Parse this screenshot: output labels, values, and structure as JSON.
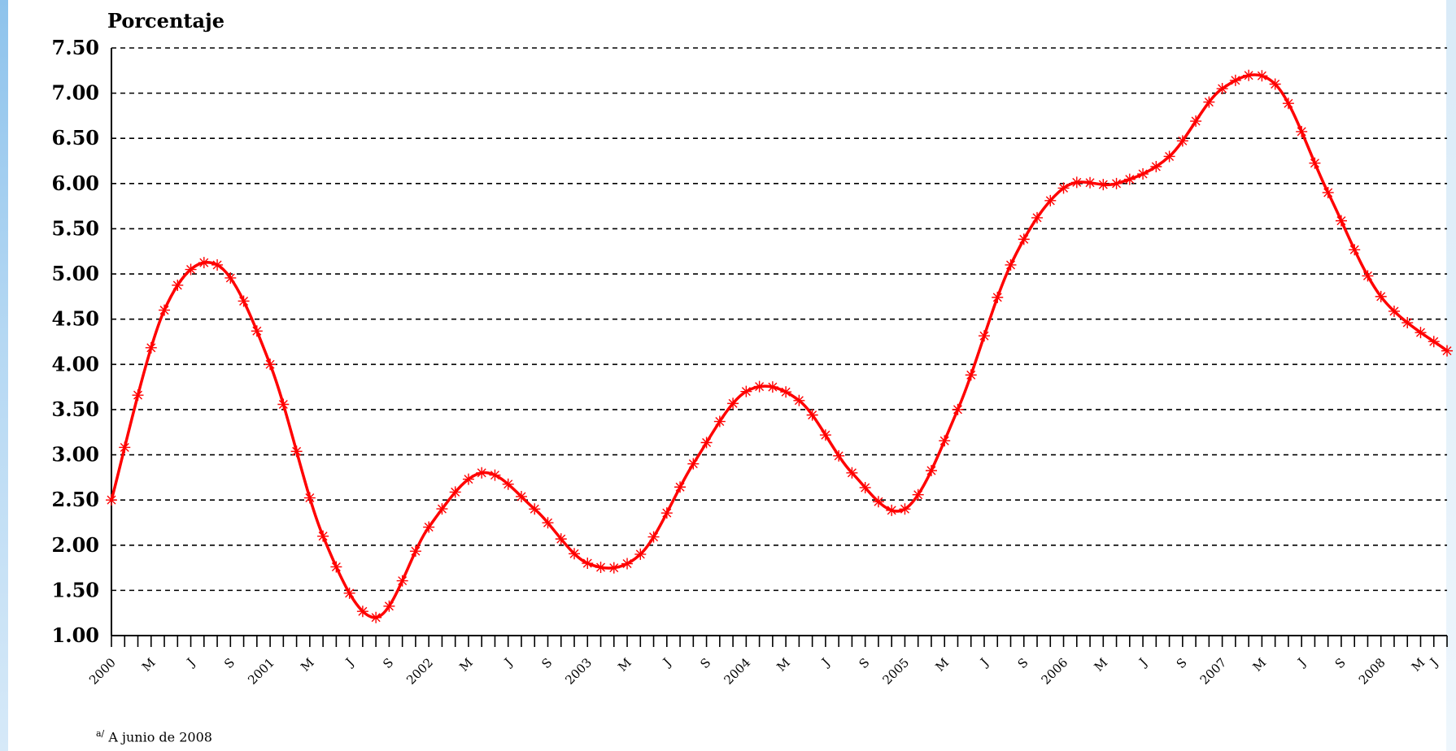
{
  "colors": {
    "series": "#ff0000",
    "axis": "#000000",
    "grid": "#000000"
  },
  "chart_data": {
    "type": "line",
    "title": "",
    "ylabel": "Porcentaje",
    "xlabel": "",
    "ylim": [
      1.0,
      7.5
    ],
    "yticks": [
      "1.00",
      "1.50",
      "2.00",
      "2.50",
      "3.00",
      "3.50",
      "4.00",
      "4.50",
      "5.00",
      "5.50",
      "6.00",
      "6.50",
      "7.00",
      "7.50"
    ],
    "grid": "horizontal dashed",
    "marker": "star",
    "xtick_labels": [
      "2000",
      "M",
      "J",
      "S",
      "2001",
      "M",
      "J",
      "S",
      "2002",
      "M",
      "J",
      "S",
      "2003",
      "M",
      "J",
      "S",
      "2004",
      "M",
      "J",
      "S",
      "2005",
      "M",
      "J",
      "S",
      "2006",
      "M",
      "J",
      "S",
      "2007",
      "M",
      "J",
      "S",
      "2008",
      "M",
      "J"
    ],
    "x": [
      "2000-01",
      "2000-05",
      "2000-09",
      "2001-01",
      "2001-05",
      "2001-09",
      "2002-01",
      "2002-05",
      "2002-09",
      "2003-01",
      "2003-05",
      "2003-09",
      "2004-01",
      "2004-05",
      "2004-09",
      "2005-01",
      "2005-05",
      "2005-09",
      "2006-01",
      "2006-05",
      "2006-09",
      "2007-01",
      "2007-05",
      "2007-09",
      "2008-01",
      "2008-06"
    ],
    "values": [
      2.5,
      4.6,
      5.1,
      4.0,
      2.1,
      1.2,
      2.2,
      2.8,
      2.4,
      1.8,
      1.9,
      2.9,
      3.7,
      3.6,
      2.8,
      2.4,
      3.5,
      5.1,
      5.95,
      6.0,
      6.3,
      7.05,
      7.1,
      5.9,
      4.75,
      4.15
    ]
  },
  "footnote": {
    "marker": "a/",
    "text": "A junio de 2008"
  }
}
